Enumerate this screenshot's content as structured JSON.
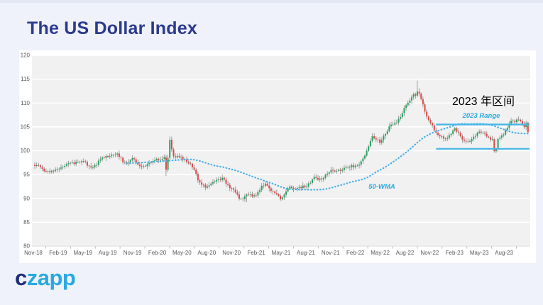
{
  "header": {
    "title": "The US Dollar Index"
  },
  "logo": {
    "prefix": "c",
    "suffix": "zapp",
    "prefix_color": "#1d2e7b",
    "suffix_color": "#29a9e1"
  },
  "chart_data": {
    "type": "candlestick",
    "title": "The US Dollar Index",
    "frequency": "weekly",
    "xlabel": "",
    "ylabel": "",
    "ylim": [
      80,
      120
    ],
    "y_ticks": [
      80,
      85,
      90,
      95,
      100,
      105,
      110,
      115,
      120
    ],
    "x_tick_labels": [
      "Nov-18",
      "Feb-19",
      "May-19",
      "Aug-19",
      "Nov-19",
      "Feb-20",
      "May-20",
      "Aug-20",
      "Nov-20",
      "Feb-21",
      "May-21",
      "Aug-21",
      "Nov-21",
      "Feb-22",
      "May-22",
      "Aug-22",
      "Nov-22",
      "Feb-23",
      "May-23",
      "Aug-23"
    ],
    "grid": "horizontal-only",
    "legend_position": "none",
    "weeks_total": 264,
    "anchor_closes_monthly_from": "Nov-18",
    "anchor_closes_monthly": [
      97.0,
      96.2,
      95.6,
      96.2,
      97.3,
      97.5,
      97.8,
      96.1,
      98.4,
      98.9,
      99.4,
      97.4,
      98.3,
      96.4,
      97.4,
      98.1,
      99.0,
      99.0,
      98.3,
      97.4,
      93.4,
      92.2,
      93.9,
      94.0,
      91.8,
      89.9,
      90.6,
      90.9,
      93.2,
      91.3,
      90.0,
      92.4,
      92.1,
      92.6,
      94.2,
      94.1,
      96.0,
      95.7,
      96.6,
      96.7,
      98.3,
      103.0,
      101.8,
      104.7,
      105.9,
      108.8,
      112.1,
      110.7,
      105.9,
      103.5,
      102.1,
      104.9,
      102.5,
      101.7,
      104.3,
      102.9,
      101.9,
      103.6,
      106.2,
      106.6,
      103.9
    ],
    "weekly_overrides": {
      "70": {
        "l": 94.7,
        "c": 96.0
      },
      "71": {
        "c": 98.5
      },
      "72": {
        "h": 103.0,
        "c": 102.3
      },
      "73": {
        "c": 100.3
      },
      "113": {
        "l": 89.2
      },
      "204": {
        "h": 114.7,
        "c": 112.4
      },
      "205": {
        "c": 112.0
      },
      "245": {
        "l": 99.6,
        "c": 99.9
      },
      "246": {
        "c": 100.3
      },
      "262": {
        "c": 105.8
      },
      "263": {
        "o": 105.9,
        "h": 106.1,
        "l": 103.5,
        "c": 103.9
      }
    },
    "moving_average": {
      "label": "50-WMA",
      "window": 50
    },
    "range_annotation": {
      "label_cn": "2023 年区间",
      "label_en": "2023 Range",
      "top_value": 105.5,
      "bottom_value": 100.4,
      "start_week": 214
    },
    "colors": {
      "up": "#27a35e",
      "down": "#e14643",
      "wick": "#8c8c8c",
      "ma_line": "#45aee8",
      "range_line": "#45b6e8",
      "annotation_en": "#29a9e1",
      "annotation_cn": "#000000",
      "plot_bg": "#f1f1f2",
      "grid_line": "#ffffff",
      "tick_text": "#595959",
      "tick_mark": "#bbbbbb"
    }
  }
}
